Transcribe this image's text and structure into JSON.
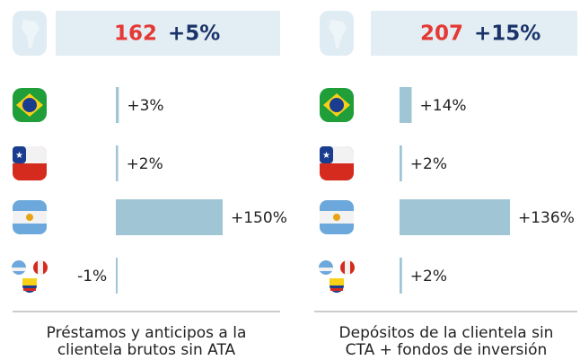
{
  "chart_data": [
    {
      "type": "bar",
      "total": 162,
      "total_change": 5,
      "total_change_label": "+5%",
      "categories": [
        null,
        null,
        null,
        null
      ],
      "values": [
        3,
        2,
        150,
        -1
      ],
      "value_labels": [
        "+3%",
        "+2%",
        "+150%",
        "-1%"
      ],
      "color": "#a0c6d6",
      "caption": [
        "Préstamos y anticipos a la",
        "clientela brutos sin ATA"
      ]
    },
    {
      "type": "bar",
      "total": 207,
      "total_change": 15,
      "total_change_label": "+15%",
      "categories": [
        null,
        null,
        null,
        null
      ],
      "values": [
        14,
        2,
        136,
        2
      ],
      "value_labels": [
        "+14%",
        "+2%",
        "+136%",
        "+2%"
      ],
      "color": "#a0c6d6",
      "caption": [
        "Depósitos de la clientela sin",
        "CTA + fondos de inversión"
      ]
    }
  ]
}
